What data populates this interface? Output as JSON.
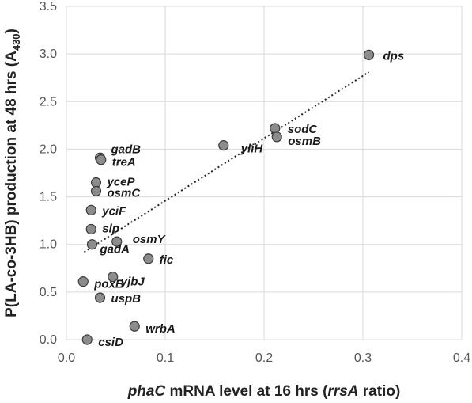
{
  "chart_data": {
    "type": "scatter",
    "xlabel_parts": [
      {
        "text": "phaC",
        "italic": true
      },
      {
        "text": " mRNA level at 16 hrs (",
        "italic": false
      },
      {
        "text": "rrsA",
        "italic": true
      },
      {
        "text": " ratio)",
        "italic": false
      }
    ],
    "ylabel_parts": [
      {
        "text": "P(LA-co-3HB) production at 48 hrs (A",
        "sub": false
      },
      {
        "text": "430",
        "sub": true
      },
      {
        "text": ")",
        "sub": false
      }
    ],
    "xlim": [
      0,
      0.4
    ],
    "ylim": [
      0,
      3.5
    ],
    "x_ticks": [
      "0.0",
      "0.1",
      "0.2",
      "0.3",
      "0.4"
    ],
    "y_ticks": [
      "0.0",
      "0.5",
      "1.0",
      "1.5",
      "2.0",
      "2.5",
      "3.0",
      "3.5"
    ],
    "grid": true,
    "trendline": {
      "x": [
        0.018,
        0.306
      ],
      "y": [
        0.92,
        2.81
      ]
    },
    "points": [
      {
        "label": "dps",
        "x": 0.306,
        "y": 2.99
      },
      {
        "label": "sodC",
        "x": 0.211,
        "y": 2.22
      },
      {
        "label": "osmB",
        "x": 0.213,
        "y": 2.13
      },
      {
        "label": "yliH",
        "x": 0.159,
        "y": 2.04
      },
      {
        "label": "gadB",
        "x": 0.034,
        "y": 1.91
      },
      {
        "label": "treA",
        "x": 0.035,
        "y": 1.89
      },
      {
        "label": "yceP",
        "x": 0.03,
        "y": 1.65
      },
      {
        "label": "osmC",
        "x": 0.03,
        "y": 1.56
      },
      {
        "label": "yciF",
        "x": 0.025,
        "y": 1.36
      },
      {
        "label": "slp",
        "x": 0.025,
        "y": 1.16
      },
      {
        "label": "osmY",
        "x": 0.051,
        "y": 1.03
      },
      {
        "label": "gadA",
        "x": 0.026,
        "y": 1.0
      },
      {
        "label": "fic",
        "x": 0.083,
        "y": 0.85
      },
      {
        "label": "yjbJ",
        "x": 0.047,
        "y": 0.66
      },
      {
        "label": "poxB",
        "x": 0.017,
        "y": 0.61
      },
      {
        "label": "uspB",
        "x": 0.034,
        "y": 0.44
      },
      {
        "label": "wrbA",
        "x": 0.069,
        "y": 0.14
      },
      {
        "label": "csiD",
        "x": 0.021,
        "y": 0.0
      }
    ]
  }
}
